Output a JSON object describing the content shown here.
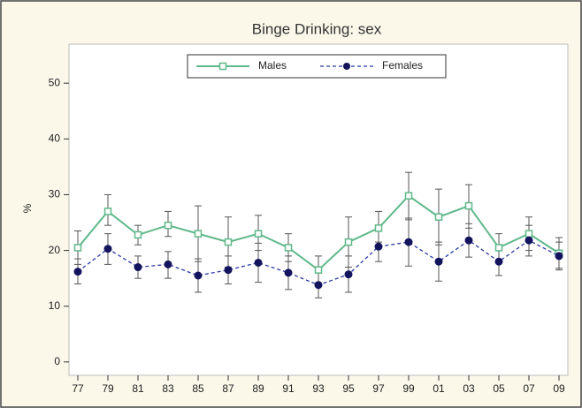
{
  "chart_data": {
    "type": "line",
    "title": "Binge Drinking: sex",
    "y_label": "%",
    "categories": [
      "77",
      "79",
      "81",
      "83",
      "85",
      "87",
      "89",
      "91",
      "93",
      "95",
      "97",
      "99",
      "01",
      "03",
      "05",
      "07",
      "09"
    ],
    "series": [
      {
        "name": "Males",
        "color": "#5fb88a",
        "marker": "square",
        "line_style": "solid",
        "values": [
          20.5,
          27,
          22.8,
          24.5,
          23,
          21.5,
          23,
          20.5,
          16.5,
          21.5,
          24,
          29.8,
          26,
          28,
          20.5,
          23,
          19.5
        ],
        "lower": [
          17.5,
          24.5,
          21,
          22.5,
          18,
          17,
          20,
          18,
          14,
          17,
          21.5,
          25.5,
          21,
          24,
          18,
          20,
          16.8
        ],
        "upper": [
          23.5,
          30,
          24.5,
          27,
          28,
          26,
          26.3,
          23,
          19,
          26,
          27,
          34,
          31,
          31.8,
          23,
          26,
          22.3
        ]
      },
      {
        "name": "Females",
        "color": "#2a3aa8",
        "marker": "circle",
        "line_style": "dashed",
        "values": [
          16.2,
          20.3,
          17,
          17.5,
          15.5,
          16.5,
          17.8,
          16,
          13.8,
          15.7,
          20.7,
          21.5,
          18,
          21.8,
          18,
          21.8,
          19
        ],
        "lower": [
          14,
          17.5,
          15,
          15,
          12.5,
          14,
          14.3,
          13,
          11.5,
          12.5,
          18,
          17.2,
          14.5,
          18.8,
          15.5,
          19,
          16.5
        ],
        "upper": [
          18.5,
          23,
          19,
          19.8,
          18.5,
          19,
          21.3,
          19,
          16,
          19,
          23.5,
          25.8,
          21.5,
          24.8,
          20.5,
          24.5,
          21.5
        ]
      }
    ],
    "ylim": [
      -2.4,
      57
    ],
    "yticks": [
      0,
      10,
      20,
      30,
      40,
      50
    ],
    "legend": "top"
  }
}
